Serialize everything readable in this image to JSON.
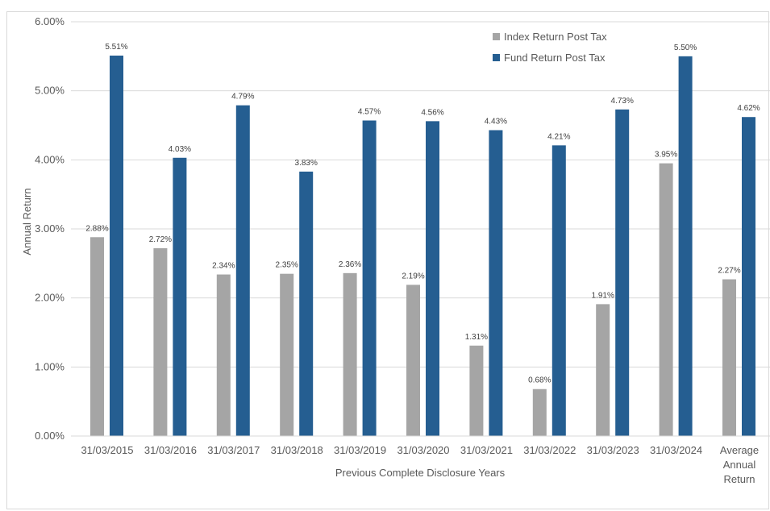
{
  "chart_data": {
    "type": "bar",
    "categories": [
      "31/03/2015",
      "31/03/2016",
      "31/03/2017",
      "31/03/2018",
      "31/03/2019",
      "31/03/2020",
      "31/03/2021",
      "31/03/2022",
      "31/03/2023",
      "31/03/2024",
      "Average Annual Return"
    ],
    "category_lines": [
      [
        "31/03/2015"
      ],
      [
        "31/03/2016"
      ],
      [
        "31/03/2017"
      ],
      [
        "31/03/2018"
      ],
      [
        "31/03/2019"
      ],
      [
        "31/03/2020"
      ],
      [
        "31/03/2021"
      ],
      [
        "31/03/2022"
      ],
      [
        "31/03/2023"
      ],
      [
        "31/03/2024"
      ],
      [
        "Average",
        "Annual",
        "Return"
      ]
    ],
    "series": [
      {
        "name": "Index Return Post Tax",
        "color": "#a5a5a5",
        "values": [
          2.88,
          2.72,
          2.34,
          2.35,
          2.36,
          2.19,
          1.31,
          0.68,
          1.91,
          3.95,
          2.27
        ],
        "labels": [
          "2.88%",
          "2.72%",
          "2.34%",
          "2.35%",
          "2.36%",
          "2.19%",
          "1.31%",
          "0.68%",
          "1.91%",
          "3.95%",
          "2.27%"
        ]
      },
      {
        "name": "Fund Return Post Tax",
        "color": "#255e91",
        "values": [
          5.51,
          4.03,
          4.79,
          3.83,
          4.57,
          4.56,
          4.43,
          4.21,
          4.73,
          5.5,
          4.62
        ],
        "labels": [
          "5.51%",
          "4.03%",
          "4.79%",
          "3.83%",
          "4.57%",
          "4.56%",
          "4.43%",
          "4.21%",
          "4.73%",
          "5.50%",
          "4.62%"
        ]
      }
    ],
    "ylim": [
      0,
      6
    ],
    "yticks": [
      0,
      1,
      2,
      3,
      4,
      5,
      6
    ],
    "ytick_labels": [
      "0.00%",
      "1.00%",
      "2.00%",
      "3.00%",
      "4.00%",
      "5.00%",
      "6.00%"
    ],
    "xlabel": "Previous Complete Disclosure Years",
    "ylabel": "Annual Return",
    "grid": true,
    "legend_position": "top-right"
  }
}
